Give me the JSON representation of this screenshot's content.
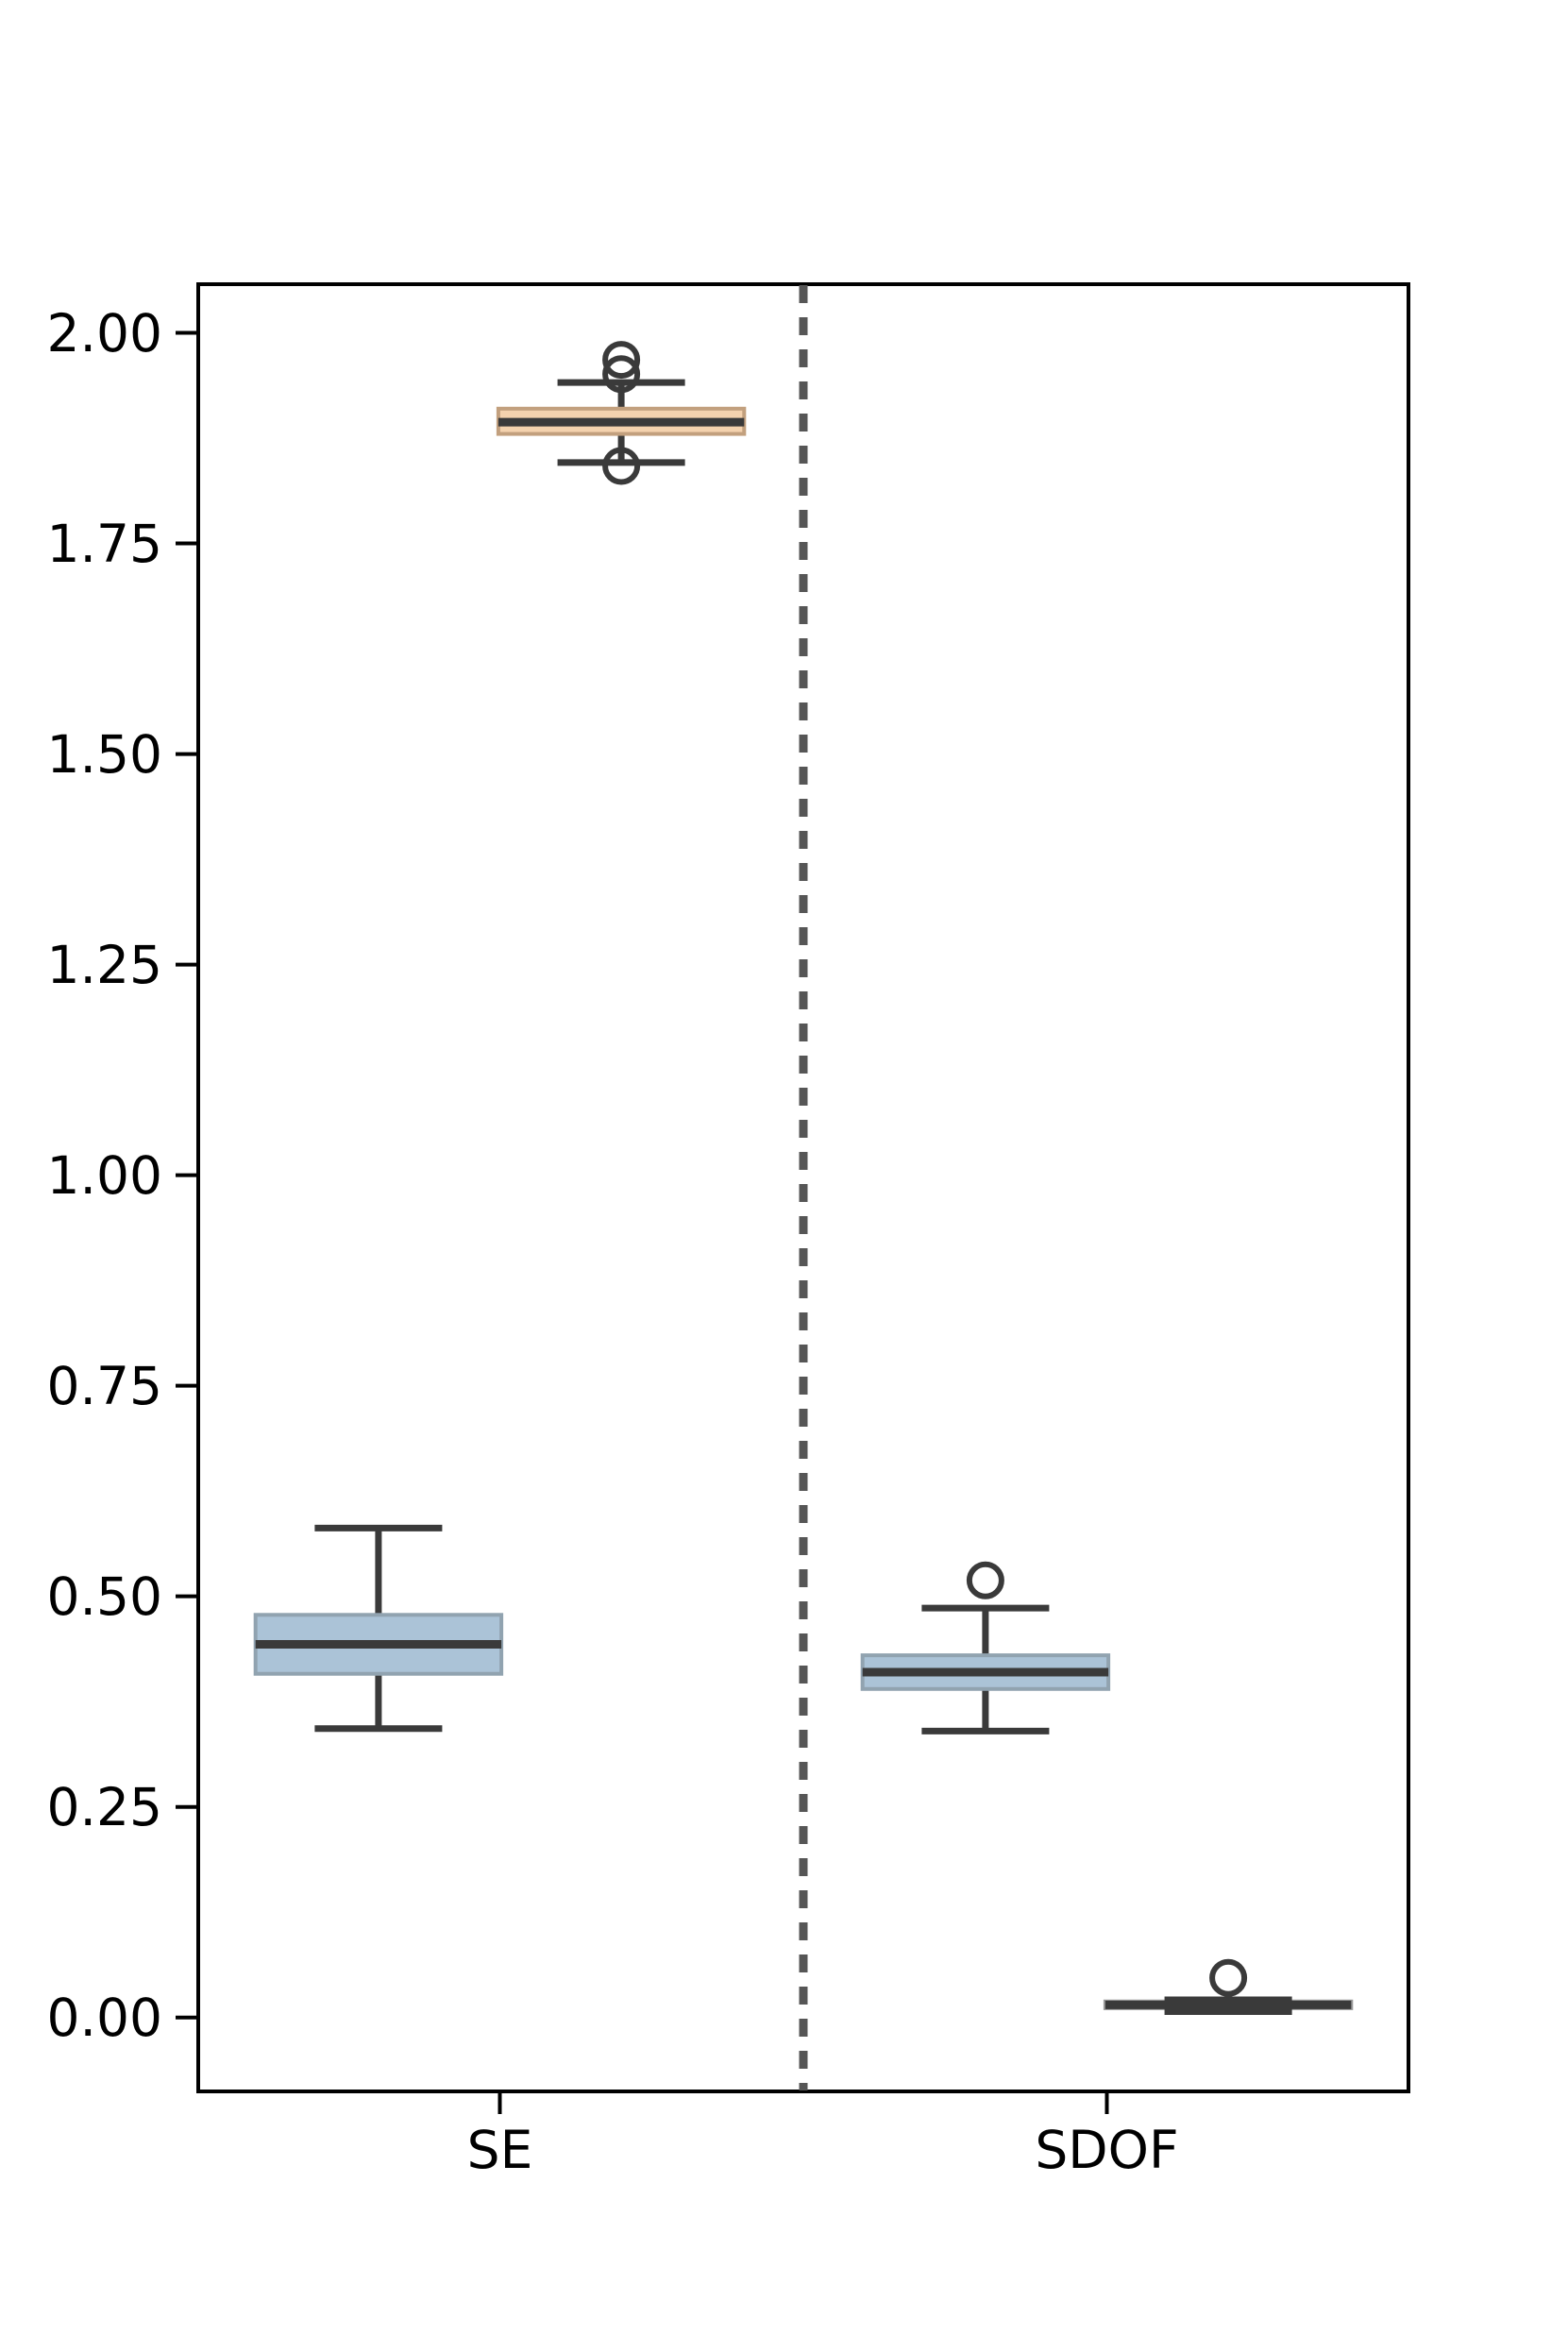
{
  "chart_data": {
    "type": "boxplot",
    "title": "",
    "xlabel": "",
    "ylabel": "",
    "categories": [
      {
        "label": "SE",
        "x": 0
      },
      {
        "label": "SDOF",
        "x": 1
      }
    ],
    "yticks": [
      "0.00",
      "0.25",
      "0.50",
      "0.75",
      "1.00",
      "1.25",
      "1.50",
      "1.75",
      "2.00"
    ],
    "ylim": [
      -0.09,
      2.06
    ],
    "xlim": [
      -0.5,
      1.5
    ],
    "separator_x": 0.5,
    "box_width": 0.405,
    "cap_width": 0.21,
    "line_color": "#3a3a3a",
    "separator_color": "#565656",
    "axis_color": "#000000",
    "boxes": [
      {
        "name": "se-blue",
        "group": "SE",
        "x": -0.2,
        "fill": "#abc3d7",
        "edge": "#91a3b0",
        "whisker_low": 0.343,
        "q1": 0.408,
        "median": 0.443,
        "q3": 0.478,
        "whisker_high": 0.581,
        "fliers": []
      },
      {
        "name": "se-tan",
        "group": "SE",
        "x": 0.2,
        "fill": "#f4d2ae",
        "edge": "#c2a07e",
        "whisker_low": 1.846,
        "q1": 1.88,
        "median": 1.894,
        "q3": 1.91,
        "whisker_high": 1.941,
        "fliers": [
          1.968,
          1.951,
          1.842
        ]
      },
      {
        "name": "sdof-blue",
        "group": "SDOF",
        "x": 0.8,
        "fill": "#abc3d7",
        "edge": "#91a3b0",
        "whisker_low": 0.34,
        "q1": 0.39,
        "median": 0.41,
        "q3": 0.43,
        "whisker_high": 0.486,
        "fliers": [
          0.519
        ]
      },
      {
        "name": "sdof-dark",
        "group": "SDOF",
        "x": 1.2,
        "fill": "#3d3d3d",
        "edge": "#9a9a9a",
        "whisker_low": 0.007,
        "q1": 0.011,
        "median": 0.015,
        "q3": 0.019,
        "whisker_high": 0.021,
        "fliers": [
          0.047
        ]
      }
    ]
  }
}
